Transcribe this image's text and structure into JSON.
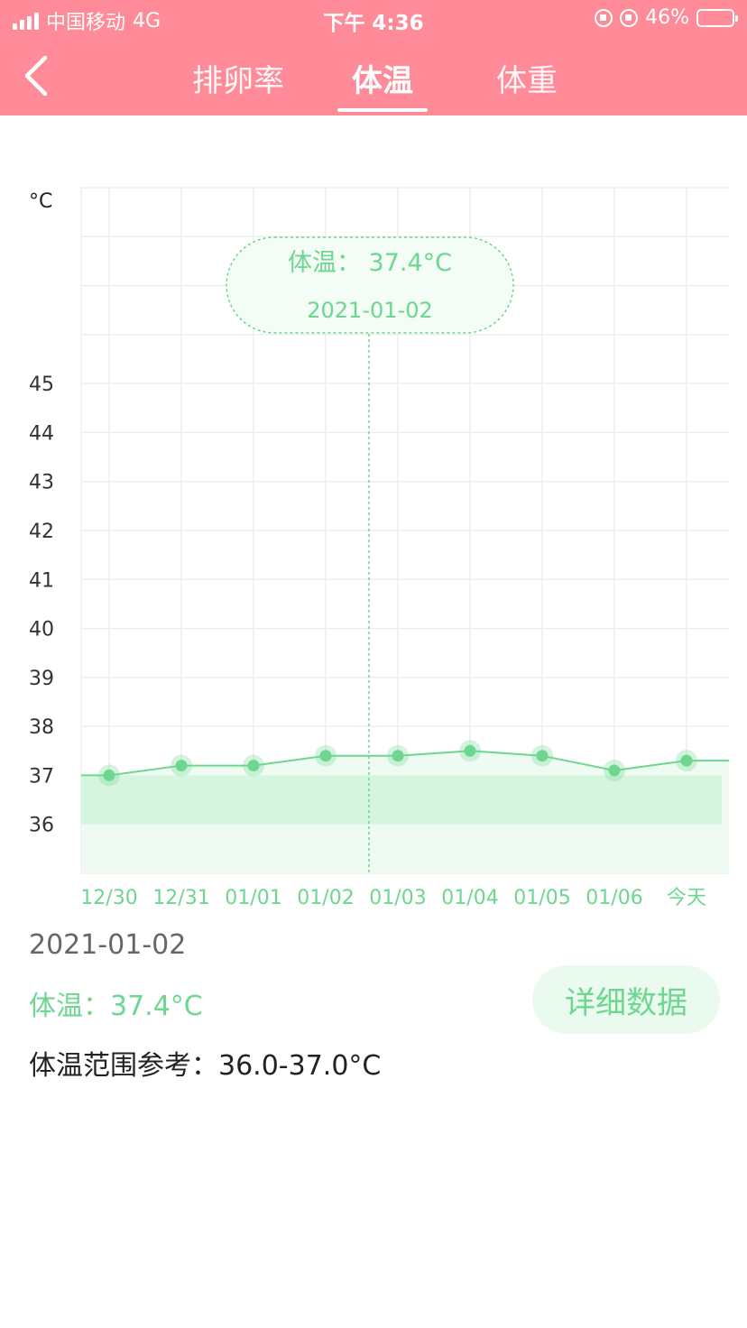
{
  "status_bar": {
    "carrier": "中国移动",
    "network": "4G",
    "time": "下午 4:36",
    "battery": "46%",
    "battery_level": 0.46
  },
  "nav": {
    "tabs": [
      {
        "label": "排卵率"
      },
      {
        "label": "体温"
      },
      {
        "label": "体重"
      }
    ],
    "active_tab": 1
  },
  "colors": {
    "header": "#FF8A98",
    "accent_green": "#6DD68F",
    "range_band": "#D6F5DF",
    "area_fill": "#EFFBF2"
  },
  "chart_data": {
    "type": "line",
    "y_unit": "°C",
    "yticks": [
      "36",
      "37",
      "38",
      "39",
      "40",
      "41",
      "42",
      "43",
      "44",
      "45"
    ],
    "ylim": [
      35,
      49
    ],
    "categories": [
      "12/30",
      "12/31",
      "01/01",
      "01/02",
      "01/03",
      "01/04",
      "01/05",
      "01/06",
      "今天"
    ],
    "series": [
      {
        "values": [
          37.0,
          37.2,
          37.2,
          37.4,
          37.4,
          37.5,
          37.4,
          37.1,
          37.3
        ]
      }
    ],
    "reference_band": [
      36.0,
      37.0
    ],
    "grid": true,
    "tooltip": {
      "label": "体温：",
      "value": "37.4°C",
      "date": "2021-01-02",
      "category_index": 3
    }
  },
  "detail": {
    "date": "2021-01-02",
    "temp_label": "体温：",
    "temp_value": "37.4°C",
    "range_label": "体温范围参考：",
    "range_value": "36.0-37.0°C",
    "button_label": "详细数据"
  }
}
